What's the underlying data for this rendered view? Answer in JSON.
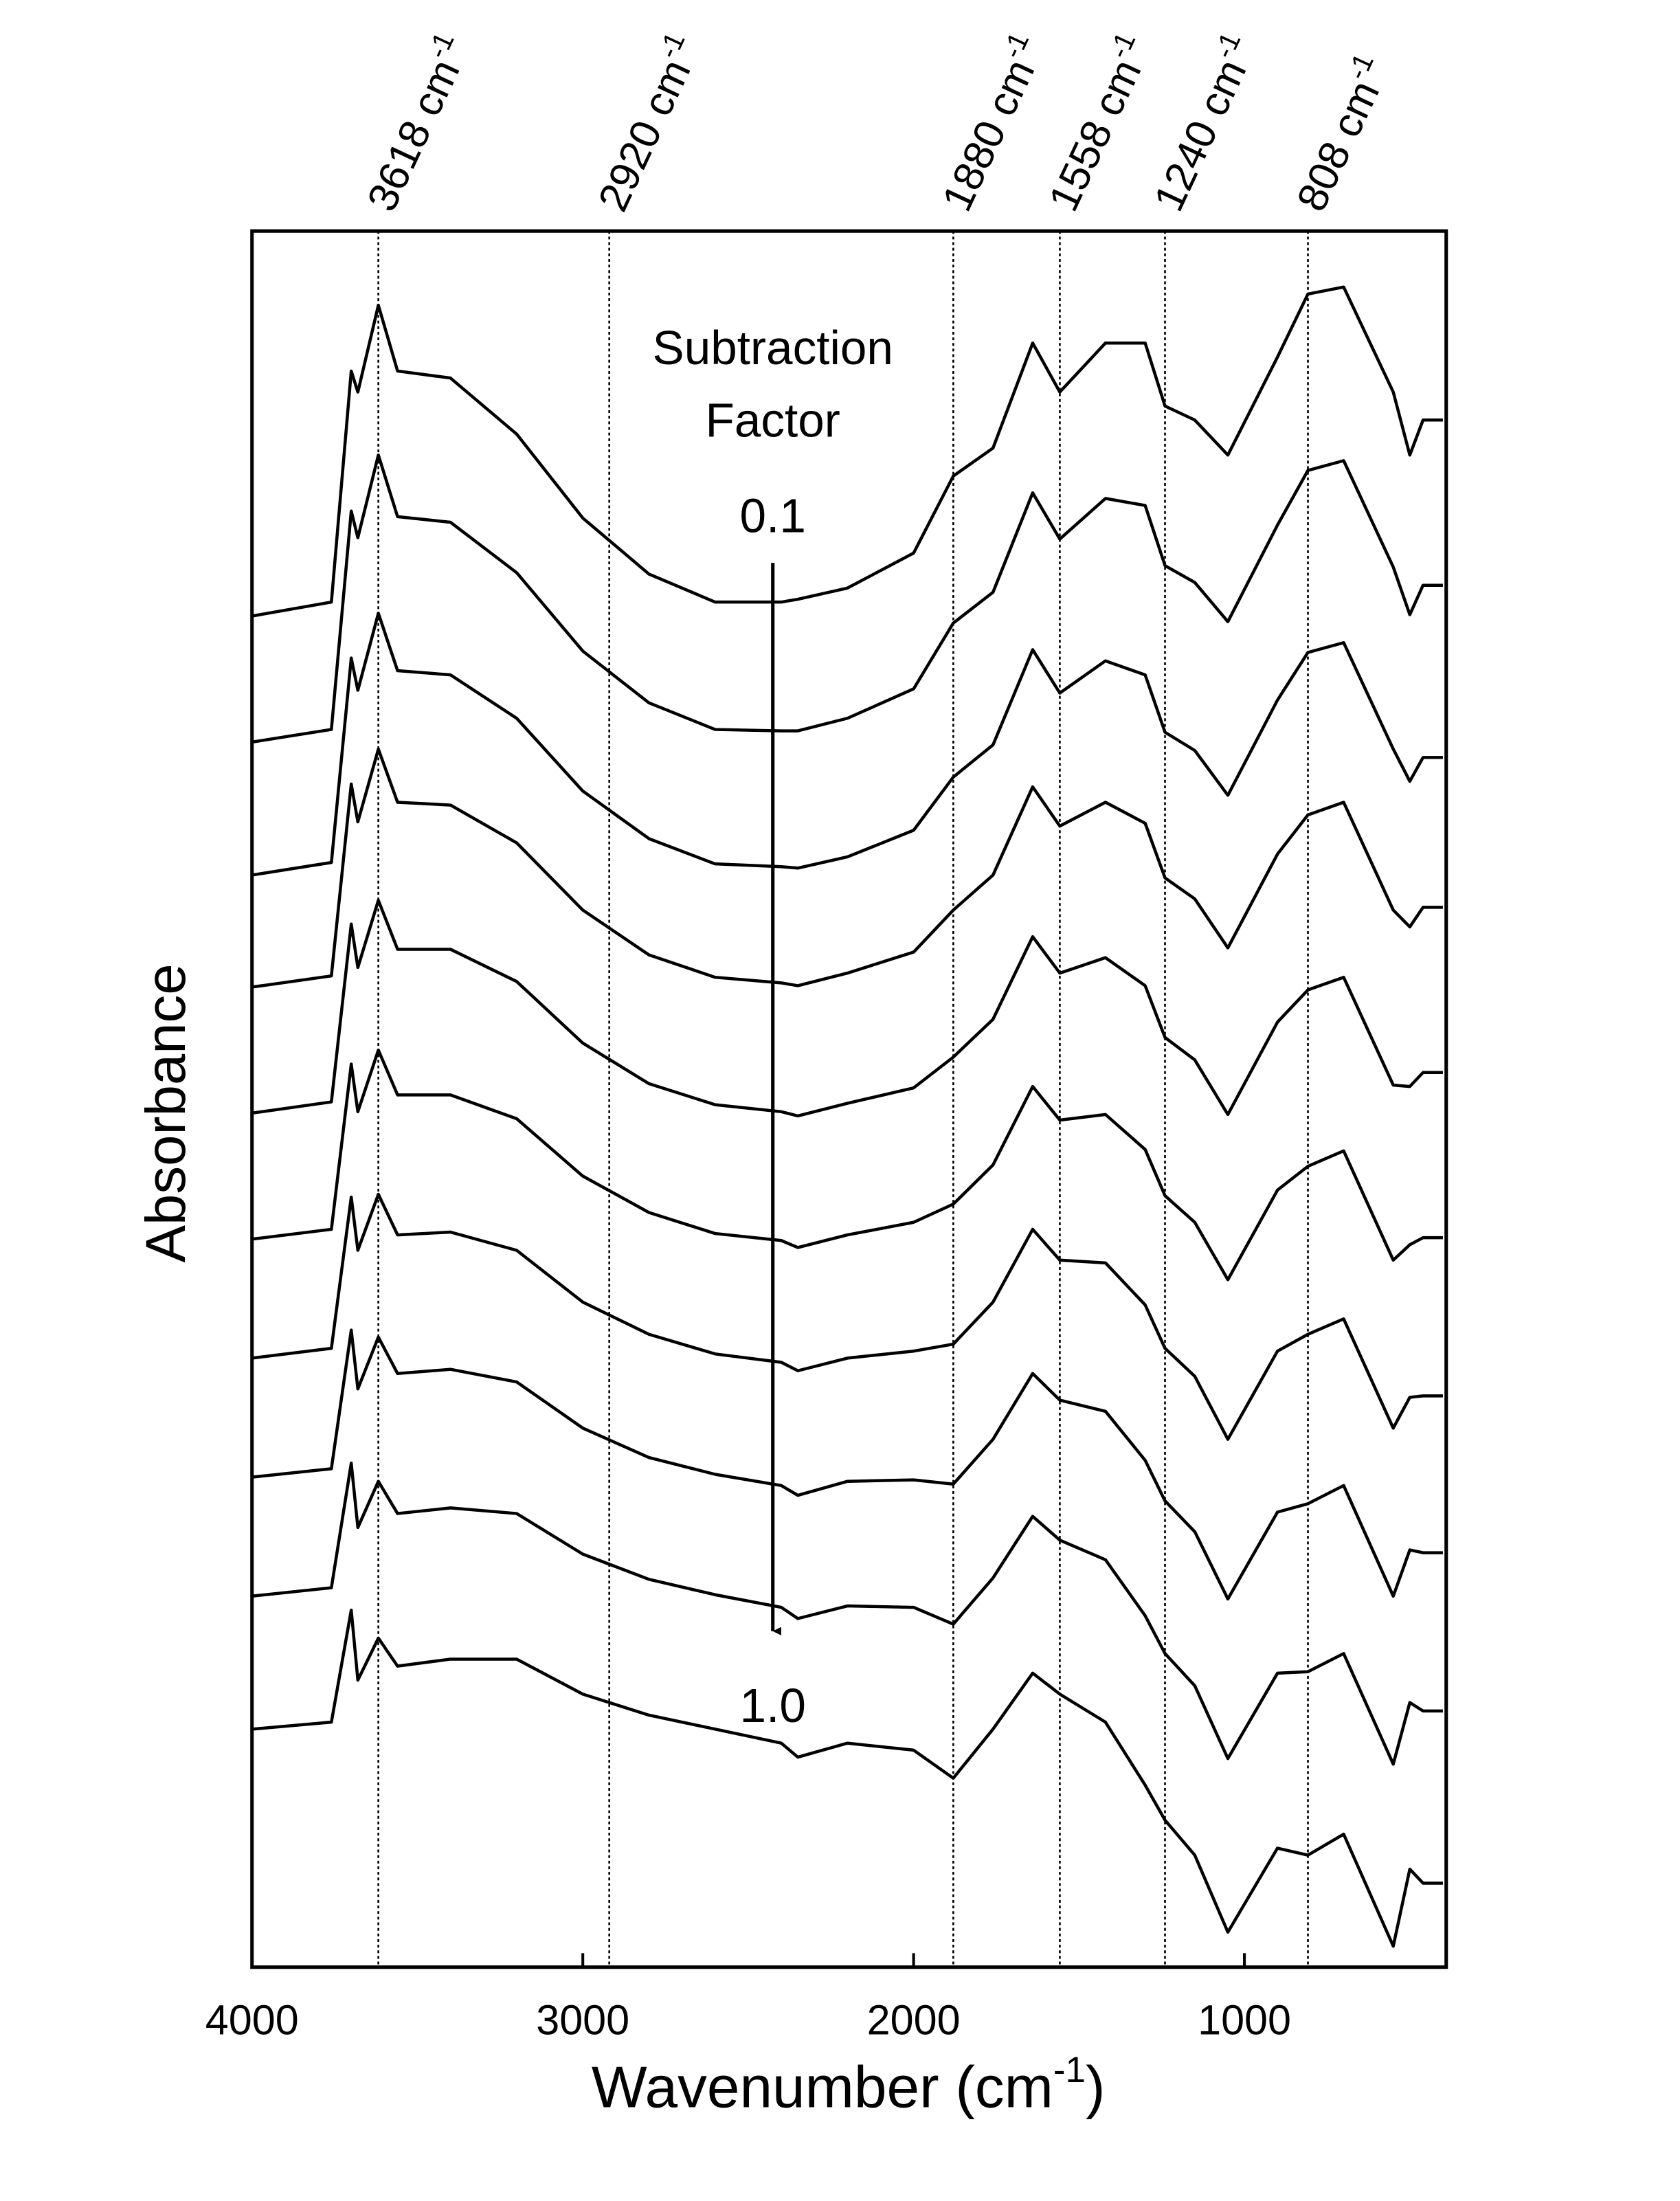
{
  "chart_data": {
    "type": "line",
    "x_label": {
      "text": "Wavenumber (cm",
      "sup": "-1",
      "tail": ")"
    },
    "y_label": "Absorbance",
    "xlim": [
      4000,
      390
    ],
    "xticks": [
      4000,
      3000,
      2000,
      1000
    ],
    "ylim": [
      0,
      124
    ],
    "color": "#000000",
    "factor_label": [
      "Subtraction",
      "Factor"
    ],
    "factor_start": "0.1",
    "factor_end": "1.0",
    "annotations": [
      {
        "x": 3618,
        "text": "3618 cm",
        "sup": "-1"
      },
      {
        "x": 2920,
        "text": "2920 cm",
        "sup": "-1"
      },
      {
        "x": 1880,
        "text": "1880 cm",
        "sup": "-1"
      },
      {
        "x": 1558,
        "text": "1558 cm",
        "sup": "-1"
      },
      {
        "x": 1240,
        "text": "1240 cm",
        "sup": "-1"
      },
      {
        "x": 808,
        "text": "808 cm",
        "sup": "-1"
      }
    ],
    "x": [
      4000,
      3760,
      3700,
      3680,
      3618,
      3560,
      3400,
      3200,
      3000,
      2800,
      2600,
      2400,
      2350,
      2200,
      2000,
      1880,
      1760,
      1640,
      1558,
      1420,
      1300,
      1240,
      1150,
      1050,
      900,
      808,
      700,
      550,
      500,
      460,
      400
    ],
    "series": [
      {
        "values": [
          96.5,
          97.5,
          114,
          112.5,
          118.7,
          114,
          113.5,
          109.5,
          103.5,
          99.5,
          97.5,
          97.5,
          97.7,
          98.5,
          101,
          106.5,
          108.5,
          116,
          112.5,
          116,
          116,
          111.5,
          110.5,
          108,
          115,
          119.5,
          120,
          112.5,
          108,
          110.5,
          110.5
        ]
      },
      {
        "values": [
          87.5,
          88.4,
          104,
          102.1,
          108,
          103.6,
          103.2,
          99.6,
          94,
          90.3,
          88.4,
          88.3,
          88.3,
          89.2,
          91.3,
          96,
          98.2,
          105.3,
          102,
          104.9,
          104.4,
          100.1,
          98.9,
          96.1,
          103,
          106.9,
          107.6,
          100,
          96.6,
          98.7,
          98.7
        ]
      },
      {
        "values": [
          78,
          78.9,
          93.5,
          91.2,
          96.7,
          92.6,
          92.3,
          89.2,
          84,
          80.6,
          78.8,
          78.6,
          78.5,
          79.3,
          81.2,
          85,
          87.3,
          94.1,
          91,
          93.3,
          92.3,
          88.2,
          86.9,
          83.7,
          90.5,
          93.9,
          94.6,
          87,
          84.7,
          86.4,
          86.4
        ]
      },
      {
        "values": [
          70,
          70.8,
          84.5,
          81.8,
          87,
          83.2,
          83,
          80.3,
          75.5,
          72.3,
          70.7,
          70.3,
          70.1,
          71,
          72.5,
          75.5,
          78,
          84.3,
          81.5,
          83.2,
          81.7,
          77.8,
          76.3,
          72.8,
          79.5,
          82.3,
          83.2,
          75.5,
          74.3,
          75.7,
          75.7
        ]
      },
      {
        "values": [
          61,
          61.8,
          74.5,
          71.4,
          76.2,
          72.7,
          72.7,
          70.4,
          66,
          63.1,
          61.6,
          61.1,
          60.8,
          61.7,
          62.8,
          65,
          67.7,
          73.6,
          71,
          72.1,
          70.1,
          66.4,
          64.8,
          60.9,
          67.5,
          69.8,
          70.7,
          63,
          62.9,
          63.9,
          63.9
        ]
      },
      {
        "values": [
          52,
          52.7,
          64.5,
          61.1,
          65.5,
          62.3,
          62.3,
          60.6,
          56.5,
          53.9,
          52.4,
          51.9,
          51.4,
          52.3,
          53.2,
          54.5,
          57.3,
          62.9,
          60.5,
          60.9,
          58.4,
          55.1,
          53.2,
          49.1,
          55.5,
          57.2,
          58.3,
          50.5,
          51.6,
          52.1,
          52.1
        ]
      },
      {
        "values": [
          43.5,
          44.2,
          55,
          51.2,
          55.2,
          52.3,
          52.5,
          51.2,
          47.5,
          45.2,
          43.8,
          43.2,
          42.6,
          43.5,
          44,
          44.5,
          47.5,
          52.7,
          50.5,
          50.3,
          47.3,
          44.2,
          42.2,
          37.7,
          44,
          45.2,
          46.3,
          38.5,
          40.7,
          40.8,
          40.8
        ]
      },
      {
        "values": [
          35,
          35.6,
          45.5,
          41.3,
          45,
          42.4,
          42.7,
          41.8,
          38.5,
          36.4,
          35.2,
          34.4,
          33.7,
          34.7,
          34.8,
          34.5,
          37.7,
          42.4,
          40.5,
          39.7,
          36.2,
          33.3,
          31.1,
          26.3,
          32.5,
          33.1,
          34.4,
          26.5,
          29.8,
          29.6,
          29.6
        ]
      },
      {
        "values": [
          26.5,
          27.1,
          36,
          31.4,
          34.7,
          32.4,
          32.8,
          32.4,
          29.5,
          27.7,
          26.6,
          25.7,
          24.9,
          25.8,
          25.7,
          24.5,
          27.8,
          32.2,
          30.5,
          29.1,
          25.1,
          22.4,
          20.1,
          14.9,
          21,
          21.1,
          22.4,
          14.5,
          18.9,
          18.3,
          18.3
        ]
      },
      {
        "values": [
          17,
          17.5,
          25.5,
          20.5,
          23.5,
          21.5,
          22,
          22,
          19.5,
          18,
          17,
          16,
          15,
          16,
          15.5,
          13.5,
          17,
          21,
          19.5,
          17.5,
          13,
          10.5,
          8,
          2.5,
          8.5,
          8,
          9.5,
          1.5,
          7,
          6,
          6
        ]
      }
    ]
  }
}
